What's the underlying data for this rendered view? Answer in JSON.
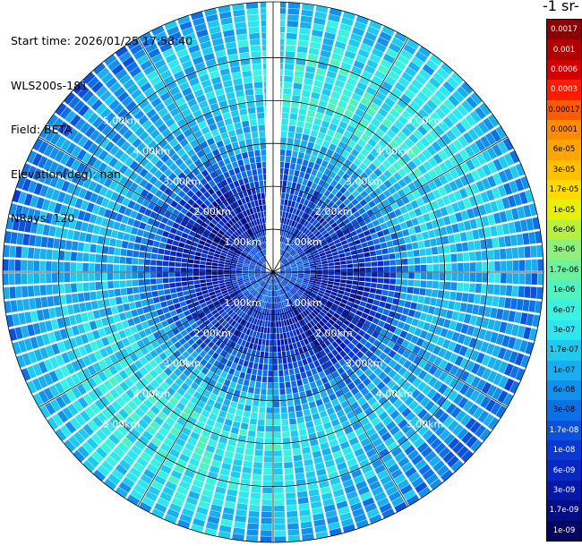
{
  "info": {
    "start_time": "Start time: 2026/01/25 17:58:40",
    "instrument": "WLS200s-181",
    "field": "Field: BETA",
    "elevation": "Elevation(deg): nan",
    "nrays": "NRays: 120"
  },
  "colorbar": {
    "unit_label": "-1 sr-",
    "ticks": [
      "0.0017",
      "0.001",
      "0.0006",
      "0.0003",
      "0.00017",
      "0.0001",
      "6e-05",
      "3e-05",
      "1.7e-05",
      "1e-05",
      "6e-06",
      "3e-06",
      "1.7e-06",
      "1e-06",
      "6e-07",
      "3e-07",
      "1.7e-07",
      "1e-07",
      "6e-08",
      "3e-08",
      "1.7e-08",
      "1e-08",
      "6e-09",
      "3e-09",
      "1.7e-09",
      "1e-09"
    ],
    "colors": [
      "#8b0000",
      "#b00000",
      "#d40000",
      "#ff1a00",
      "#ff5a00",
      "#ff8c00",
      "#ffa500",
      "#ffc000",
      "#ffdb00",
      "#e6f000",
      "#b8f040",
      "#8cf07a",
      "#6ff0a0",
      "#50f2c0",
      "#3af2e0",
      "#2ee6f0",
      "#1ecaf0",
      "#18aef0",
      "#1290ec",
      "#0c70e6",
      "#0a52dc",
      "#0a38d2",
      "#0828c0",
      "#0618a6",
      "#040e86",
      "#020660"
    ]
  },
  "chart_data": {
    "type": "heatmap",
    "subtype": "polar-ppi",
    "field": "BETA",
    "n_rays": 120,
    "range_rings_km": [
      1.0,
      2.0,
      3.0,
      4.0,
      5.0
    ],
    "ring_labels": [
      "1.00km",
      "2.00km",
      "3.00km",
      "4.00km",
      "5.00km"
    ],
    "max_range_km": 6.3,
    "color_scale": "log",
    "value_range": [
      1e-09,
      0.0017
    ],
    "radial_profile": [
      {
        "range_km": 0.0,
        "value": 1.7e-08
      },
      {
        "range_km": 0.6,
        "value": 1.7e-08
      },
      {
        "range_km": 1.2,
        "value": 4e-09
      },
      {
        "range_km": 1.8,
        "value": 6e-09
      },
      {
        "range_km": 2.4,
        "value": 1.5e-08
      },
      {
        "range_km": 3.0,
        "value": 6e-08
      },
      {
        "range_km": 3.6,
        "value": 1.5e-07
      },
      {
        "range_km": 4.2,
        "value": 2e-07
      },
      {
        "range_km": 4.8,
        "value": 1.7e-07
      },
      {
        "range_km": 5.4,
        "value": 1.4e-07
      },
      {
        "range_km": 6.0,
        "value": 8e-08
      },
      {
        "range_km": 6.3,
        "value": 6e-08
      }
    ],
    "xlabel": "",
    "ylabel": ""
  }
}
